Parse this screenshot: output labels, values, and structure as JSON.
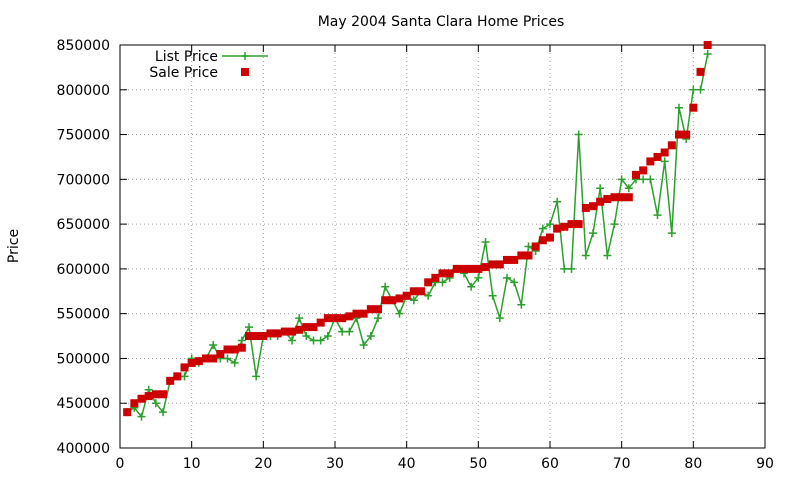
{
  "chart_data": {
    "type": "line",
    "title": "May 2004 Santa Clara Home Prices",
    "xlabel": "",
    "ylabel": "Price",
    "xlim": [
      0,
      90
    ],
    "ylim": [
      400000,
      850000
    ],
    "xticks": [
      "0",
      "10",
      "20",
      "30",
      "40",
      "50",
      "60",
      "70",
      "80",
      "90"
    ],
    "yticks": [
      "400000",
      "450000",
      "500000",
      "550000",
      "600000",
      "650000",
      "700000",
      "750000",
      "800000",
      "850000"
    ],
    "grid": true,
    "legend_position": "top-left",
    "series": [
      {
        "name": "List Price",
        "style": "line-plus",
        "color": "#2ca02c",
        "x": [
          1,
          2,
          3,
          4,
          5,
          6,
          7,
          8,
          9,
          10,
          11,
          12,
          13,
          14,
          15,
          16,
          17,
          18,
          19,
          20,
          21,
          22,
          23,
          24,
          25,
          26,
          27,
          28,
          29,
          30,
          31,
          32,
          33,
          34,
          35,
          36,
          37,
          38,
          39,
          40,
          41,
          42,
          43,
          44,
          45,
          46,
          47,
          48,
          49,
          50,
          51,
          52,
          53,
          54,
          55,
          56,
          57,
          58,
          59,
          60,
          61,
          62,
          63,
          64,
          65,
          66,
          67,
          68,
          69,
          70,
          71,
          72,
          73,
          74,
          75,
          76,
          77,
          78,
          79,
          80,
          81,
          82
        ],
        "y": [
          440000,
          445000,
          435000,
          465000,
          450000,
          440000,
          475000,
          480000,
          480000,
          500000,
          495000,
          500000,
          515000,
          500000,
          500000,
          495000,
          520000,
          535000,
          480000,
          525000,
          525000,
          525000,
          530000,
          520000,
          545000,
          525000,
          520000,
          520000,
          525000,
          545000,
          530000,
          530000,
          545000,
          515000,
          525000,
          545000,
          580000,
          565000,
          550000,
          570000,
          565000,
          575000,
          570000,
          585000,
          585000,
          590000,
          600000,
          595000,
          580000,
          590000,
          630000,
          570000,
          545000,
          590000,
          585000,
          560000,
          625000,
          620000,
          645000,
          650000,
          675000,
          600000,
          600000,
          750000,
          615000,
          640000,
          690000,
          615000,
          650000,
          700000,
          690000,
          700000,
          700000,
          700000,
          660000,
          720000,
          640000,
          780000,
          745000,
          800000,
          800000,
          840000
        ]
      },
      {
        "name": "Sale Price",
        "style": "squares",
        "color": "#cc0000",
        "x": [
          1,
          2,
          3,
          4,
          5,
          6,
          7,
          8,
          9,
          10,
          11,
          12,
          13,
          14,
          15,
          16,
          17,
          18,
          19,
          20,
          21,
          22,
          23,
          24,
          25,
          26,
          27,
          28,
          29,
          30,
          31,
          32,
          33,
          34,
          35,
          36,
          37,
          38,
          39,
          40,
          41,
          42,
          43,
          44,
          45,
          46,
          47,
          48,
          49,
          50,
          51,
          52,
          53,
          54,
          55,
          56,
          57,
          58,
          59,
          60,
          61,
          62,
          63,
          64,
          65,
          66,
          67,
          68,
          69,
          70,
          71,
          72,
          73,
          74,
          75,
          76,
          77,
          78,
          79,
          80,
          81,
          82
        ],
        "y": [
          440000,
          450000,
          455000,
          458000,
          460000,
          460000,
          475000,
          480000,
          490000,
          495000,
          497000,
          500000,
          500000,
          505000,
          510000,
          510000,
          512000,
          525000,
          525000,
          525000,
          528000,
          528000,
          530000,
          530000,
          532000,
          535000,
          535000,
          540000,
          545000,
          545000,
          545000,
          547000,
          550000,
          550000,
          555000,
          555000,
          565000,
          565000,
          567000,
          570000,
          575000,
          575000,
          585000,
          590000,
          595000,
          595000,
          600000,
          600000,
          600000,
          600000,
          602000,
          605000,
          605000,
          610000,
          610000,
          615000,
          615000,
          625000,
          632000,
          635000,
          645000,
          647000,
          650000,
          650000,
          668000,
          670000,
          675000,
          678000,
          680000,
          680000,
          680000,
          705000,
          710000,
          720000,
          725000,
          730000,
          738000,
          750000,
          750000,
          780000,
          820000,
          850000
        ]
      }
    ]
  }
}
